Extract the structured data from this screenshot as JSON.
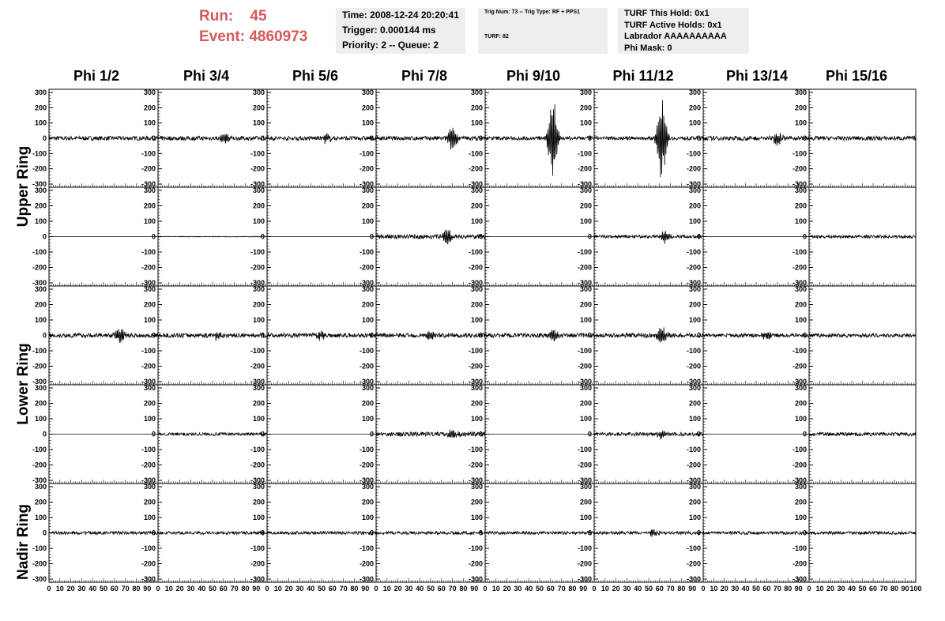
{
  "header": {
    "run_label": "Run:",
    "run_value": "45",
    "event_label": "Event:",
    "event_value": "4860973"
  },
  "info": {
    "time": "Time: 2008-12-24 20:20:41",
    "trigger": "Trigger: 0.000144 ms",
    "priority": "Priority: 2 -- Queue: 2",
    "trig_num": "Trig Num: 73 -- Trig Type: RF + PPS1",
    "turf": "TURF: 82",
    "turf_hold": "TURF This Hold: 0x1",
    "turf_active": "TURF Active Holds: 0x1",
    "labrador": "Labrador AAAAAAAAAA",
    "phi_mask": "Phi Mask: 0"
  },
  "chart_data": {
    "type": "line",
    "columns": [
      "Phi 1/2",
      "Phi 3/4",
      "Phi 5/6",
      "Phi 7/8",
      "Phi 9/10",
      "Phi 11/12",
      "Phi 13/14",
      "Phi 15/16"
    ],
    "ring_labels": [
      "Upper Ring",
      "Lower Ring",
      "Nadir Ring"
    ],
    "rows": 5,
    "ylim": [
      -300,
      300
    ],
    "yticks": [
      -300,
      -200,
      -100,
      0,
      100,
      200,
      300
    ],
    "xlim": [
      0,
      100
    ],
    "xticks": [
      0,
      10,
      20,
      30,
      40,
      50,
      60,
      70,
      80,
      90,
      100
    ],
    "panels": [
      [
        {
          "noise": 14,
          "pk": 0,
          "at": 0
        },
        {
          "noise": 14,
          "pk": 35,
          "at": 62
        },
        {
          "noise": 14,
          "pk": 30,
          "at": 55
        },
        {
          "noise": 14,
          "pk": 80,
          "at": 70
        },
        {
          "noise": 12,
          "pk": 300,
          "at": 62
        },
        {
          "noise": 12,
          "pk": 290,
          "at": 62
        },
        {
          "noise": 14,
          "pk": 50,
          "at": 70
        },
        {
          "noise": 14,
          "pk": 0,
          "at": 0
        }
      ],
      [
        {
          "noise": 0,
          "pk": 0,
          "at": 0
        },
        {
          "noise": 2,
          "pk": 0,
          "at": 0
        },
        {
          "noise": 0,
          "pk": 0,
          "at": 0
        },
        {
          "noise": 14,
          "pk": 55,
          "at": 65
        },
        {
          "noise": 0,
          "pk": 0,
          "at": 0
        },
        {
          "noise": 10,
          "pk": 50,
          "at": 65
        },
        {
          "noise": 0,
          "pk": 0,
          "at": 0
        },
        {
          "noise": 10,
          "pk": 0,
          "at": 0
        }
      ],
      [
        {
          "noise": 14,
          "pk": 55,
          "at": 65
        },
        {
          "noise": 14,
          "pk": 30,
          "at": 55
        },
        {
          "noise": 14,
          "pk": 35,
          "at": 50
        },
        {
          "noise": 14,
          "pk": 30,
          "at": 50
        },
        {
          "noise": 14,
          "pk": 55,
          "at": 62
        },
        {
          "noise": 14,
          "pk": 60,
          "at": 62
        },
        {
          "noise": 12,
          "pk": 30,
          "at": 60
        },
        {
          "noise": 12,
          "pk": 0,
          "at": 0
        }
      ],
      [
        {
          "noise": 0,
          "pk": 0,
          "at": 0
        },
        {
          "noise": 10,
          "pk": 0,
          "at": 0
        },
        {
          "noise": 0,
          "pk": 0,
          "at": 0
        },
        {
          "noise": 14,
          "pk": 40,
          "at": 70
        },
        {
          "noise": 0,
          "pk": 0,
          "at": 0
        },
        {
          "noise": 12,
          "pk": 35,
          "at": 62
        },
        {
          "noise": 0,
          "pk": 0,
          "at": 0
        },
        {
          "noise": 12,
          "pk": 0,
          "at": 0
        }
      ],
      [
        {
          "noise": 10,
          "pk": 0,
          "at": 0
        },
        {
          "noise": 10,
          "pk": 0,
          "at": 0
        },
        {
          "noise": 10,
          "pk": 0,
          "at": 0
        },
        {
          "noise": 10,
          "pk": 0,
          "at": 0
        },
        {
          "noise": 10,
          "pk": 0,
          "at": 0
        },
        {
          "noise": 10,
          "pk": 25,
          "at": 55
        },
        {
          "noise": 10,
          "pk": 0,
          "at": 0
        },
        {
          "noise": 10,
          "pk": 0,
          "at": 0
        }
      ]
    ]
  }
}
